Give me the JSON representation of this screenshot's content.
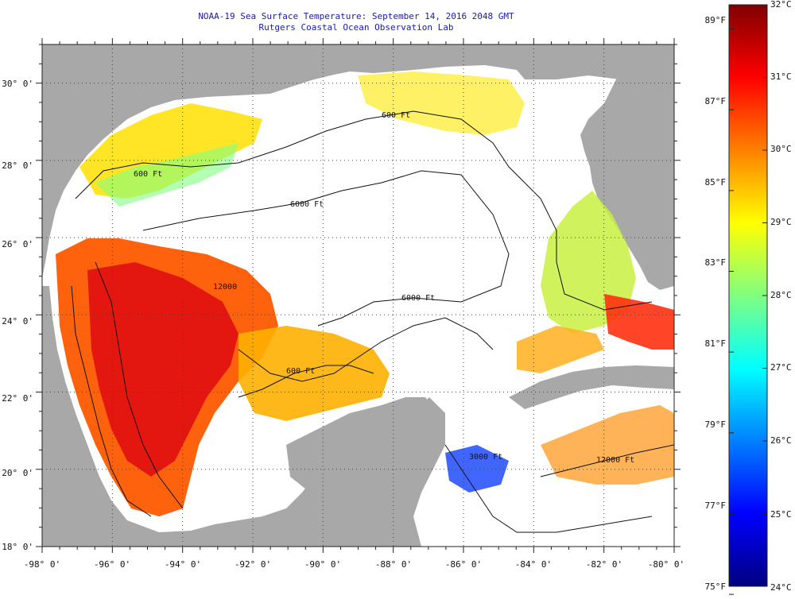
{
  "header": {
    "title": "NOAA-19 Sea Surface Temperature:  September 14, 2016 2048 GMT",
    "subtitle": "Rutgers Coastal Ocean Observation Lab"
  },
  "map": {
    "lon_range": [
      -98,
      -80
    ],
    "lat_range": [
      18,
      31
    ],
    "lon_labels": [
      "-98° 0'",
      "-96° 0'",
      "-94° 0'",
      "-92° 0'",
      "-90° 0'",
      "-88° 0'",
      "-86° 0'",
      "-84° 0'",
      "-82° 0'",
      "-80° 0'"
    ],
    "lat_labels": [
      "18° 0'",
      "20° 0'",
      "22° 0'",
      "24° 0'",
      "26° 0'",
      "28° 0'",
      "30° 0'"
    ],
    "contour_labels": [
      "600 Ft",
      "600 Ft",
      "6000 Ft",
      "6000 Ft",
      "12000",
      "600 Ft",
      "3000 Ft",
      "12000 Ft"
    ],
    "colors": {
      "land": "#a8a8a8",
      "ocean_nodata": "#ffffff",
      "grid": "#444444"
    }
  },
  "colorbar": {
    "celsius_labels": [
      "32°C",
      "31°C",
      "30°C",
      "29°C",
      "28°C",
      "27°C",
      "26°C",
      "25°C",
      "24°C"
    ],
    "fahrenheit_labels": [
      "89°F",
      "87°F",
      "85°F",
      "83°F",
      "81°F",
      "79°F",
      "77°F",
      "75°F"
    ],
    "celsius_range": [
      24,
      32
    ],
    "fahrenheit_range": [
      75,
      89
    ],
    "stops": [
      "#00007f",
      "#0000ff",
      "#0080ff",
      "#00ffff",
      "#80ff80",
      "#ffff00",
      "#ff8000",
      "#ff0000",
      "#7f0000"
    ]
  }
}
